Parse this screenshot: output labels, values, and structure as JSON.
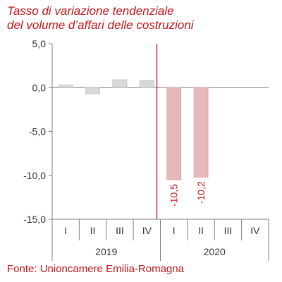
{
  "title_lines": [
    "Tasso di variazione tendenziale",
    "del volume d’affari delle costruzioni"
  ],
  "source": "Fonte: Unioncamere Emilia-Romagna",
  "colors": {
    "accent": "#c0151a",
    "bar_2019": "#d9d9d9",
    "bar_2020": "#e6b8b9",
    "axis": "#808080"
  },
  "chart_data": {
    "type": "bar",
    "title": "Tasso di variazione tendenziale del volume d’affari delle costruzioni",
    "categories": [
      "I",
      "II",
      "III",
      "IV",
      "I",
      "II",
      "III",
      "IV"
    ],
    "groups": [
      {
        "label": "2019",
        "categories": [
          "I",
          "II",
          "III",
          "IV"
        ]
      },
      {
        "label": "2020",
        "categories": [
          "I",
          "II",
          "III",
          "IV"
        ]
      }
    ],
    "series": [
      {
        "values": [
          0.3,
          -0.7,
          0.9,
          0.8,
          -10.5,
          -10.2,
          null,
          null
        ]
      }
    ],
    "data_labels": [
      null,
      null,
      null,
      null,
      "-10,5",
      "-10,2",
      null,
      null
    ],
    "yticks": [
      "5,0",
      "0,0",
      "-5,0",
      "-10,0",
      "-15,0"
    ],
    "ytick_values": [
      5,
      0,
      -5,
      -10,
      -15
    ],
    "ylim": [
      -15,
      5
    ],
    "separator_after_index": 3,
    "xlabel": "",
    "ylabel": ""
  }
}
